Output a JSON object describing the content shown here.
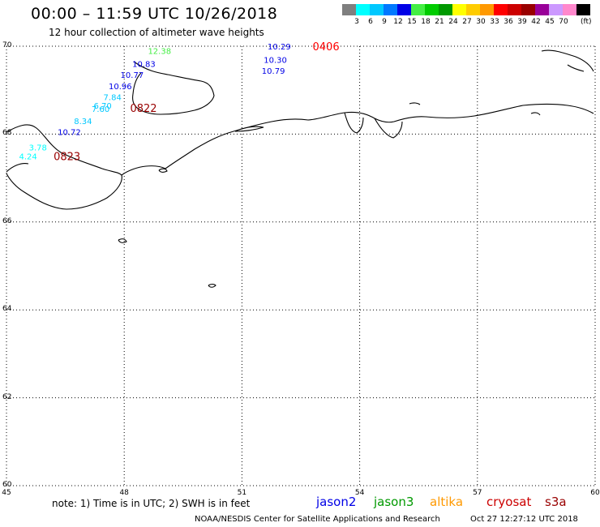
{
  "header": {
    "title": "00:00 – 11:59 UTC 10/26/2018",
    "subtitle": "12 hour collection of altimeter wave heights"
  },
  "colorbar": {
    "swatches": [
      {
        "label": "",
        "color": "#7f7f7f"
      },
      {
        "label": "3",
        "color": "#00ffff"
      },
      {
        "label": "6",
        "color": "#00c8ff"
      },
      {
        "label": "9",
        "color": "#0078ff"
      },
      {
        "label": "12",
        "color": "#0000e6"
      },
      {
        "label": "15",
        "color": "#44ee44"
      },
      {
        "label": "18",
        "color": "#00cc00"
      },
      {
        "label": "21",
        "color": "#009900"
      },
      {
        "label": "24",
        "color": "#ffff00"
      },
      {
        "label": "27",
        "color": "#ffcc00"
      },
      {
        "label": "30",
        "color": "#ff9900"
      },
      {
        "label": "33",
        "color": "#ff0000"
      },
      {
        "label": "36",
        "color": "#cc0000"
      },
      {
        "label": "39",
        "color": "#990000"
      },
      {
        "label": "42",
        "color": "#990099"
      },
      {
        "label": "45",
        "color": "#cc99ff"
      },
      {
        "label": "70",
        "color": "#ff88cc"
      },
      {
        "label": "",
        "color": "#000000"
      }
    ],
    "unit": "(ft)"
  },
  "map": {
    "lat_ticks": [
      "70",
      "68",
      "66",
      "64",
      "62",
      "60"
    ],
    "lon_ticks": [
      "45",
      "48",
      "51",
      "54",
      "57",
      "60"
    ],
    "lat_range": [
      60,
      70
    ],
    "lon_range": [
      45,
      60
    ],
    "gridlines": true,
    "observations": [
      {
        "value": "12.38",
        "lon": 48.9,
        "lat": 69.9,
        "color": "#44ee44"
      },
      {
        "value": "10.83",
        "lon": 48.5,
        "lat": 69.6,
        "color": "#0000e6"
      },
      {
        "value": "10.77",
        "lon": 48.2,
        "lat": 69.35,
        "color": "#0000e6"
      },
      {
        "value": "10.96",
        "lon": 47.9,
        "lat": 69.1,
        "color": "#0000e6"
      },
      {
        "value": "7.84",
        "lon": 47.7,
        "lat": 68.85,
        "color": "#00c8ff"
      },
      {
        "value": "6.70",
        "lon": 47.45,
        "lat": 68.65,
        "color": "#00c8ff"
      },
      {
        "value": "7.60",
        "lon": 47.4,
        "lat": 68.58,
        "color": "#00c8ff"
      },
      {
        "value": "8.34",
        "lon": 46.95,
        "lat": 68.3,
        "color": "#00c8ff"
      },
      {
        "value": "10.72",
        "lon": 46.6,
        "lat": 68.05,
        "color": "#0000e6"
      },
      {
        "value": "3.78",
        "lon": 45.8,
        "lat": 67.7,
        "color": "#00ffff"
      },
      {
        "value": "4.24",
        "lon": 45.55,
        "lat": 67.5,
        "color": "#00ffff"
      },
      {
        "value": "10.29",
        "lon": 51.95,
        "lat": 70.0,
        "color": "#0000e6"
      },
      {
        "value": "10.30",
        "lon": 51.85,
        "lat": 69.7,
        "color": "#0000e6"
      },
      {
        "value": "10.79",
        "lon": 51.8,
        "lat": 69.45,
        "color": "#0000e6"
      }
    ],
    "pass_times": [
      {
        "text": "0822",
        "lon": 48.15,
        "lat": 68.6,
        "color": "#990000"
      },
      {
        "text": "0823",
        "lon": 46.2,
        "lat": 67.5,
        "color": "#990000"
      },
      {
        "text": "0406",
        "lon": 52.8,
        "lat": 70.0,
        "color": "#ff0000"
      }
    ]
  },
  "footer": {
    "note": "note: 1) Time is in UTC; 2) SWH is in feet",
    "satellites": [
      {
        "name": "jason2",
        "color": "#0000e6"
      },
      {
        "name": "jason3",
        "color": "#009900"
      },
      {
        "name": "altika",
        "color": "#ff9900"
      },
      {
        "name": "cryosat",
        "color": "#cc0000"
      },
      {
        "name": "s3a",
        "color": "#990000"
      }
    ],
    "credit": "NOAA/NESDIS Center for Satellite Applications and Research",
    "timestamp": "Oct 27 12:27:12 UTC 2018"
  }
}
